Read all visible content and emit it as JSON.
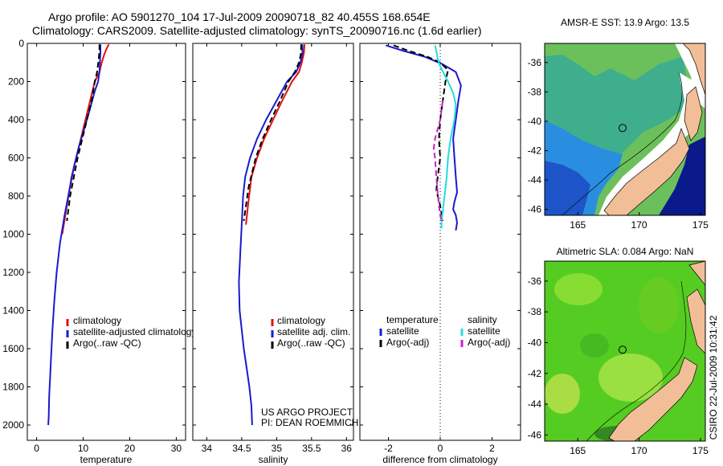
{
  "figure": {
    "title_line1": "Argo profile: AO 5901270_104 17-Jul-2009 20090718_82 40.455S 168.654E",
    "title_line2": "Climatology: CARS2009. Satellite-adjusted climatology: synTS_20090716.nc (1.6d earlier)",
    "project_line1": "US ARGO PROJECT",
    "project_line2": "PI: DEAN ROEMMICH",
    "stamp": "CSIRO 22-Jul-2009 10:31:42"
  },
  "colors": {
    "climatology": "#dd1111",
    "satellite": "#1a1acc",
    "argo": "#000000",
    "satellite_salinity": "#22dddd",
    "argo_adj_salinity": "#cc22cc",
    "land": "#f2be98",
    "sst_warm": "#6cc05c",
    "sst_cool": "#2a8ee0",
    "sla_green": "#55cc22"
  },
  "chart_data": [
    {
      "id": "temperature",
      "type": "line",
      "xlabel": "temperature",
      "ylabel": "",
      "xlim": [
        -2,
        32
      ],
      "ylim": [
        2080,
        0
      ],
      "xticks": [
        0,
        10,
        20,
        30
      ],
      "yticks": [
        0,
        200,
        400,
        600,
        800,
        1000,
        1200,
        1400,
        1600,
        1800,
        2000
      ],
      "legend": {
        "placement": "lower-right",
        "items": [
          {
            "label": "climatology",
            "color": "#dd1111"
          },
          {
            "label": "satellite-adjusted climatology",
            "color": "#1a1acc"
          },
          {
            "label": "Argo(..raw -QC)",
            "color": "#000000"
          }
        ]
      },
      "series": [
        {
          "name": "climatology",
          "color": "#dd1111",
          "dash": "",
          "x": [
            15.5,
            15.0,
            14.5,
            14.0,
            13.5,
            12.5,
            11.5,
            10.5,
            9.5,
            8.5,
            7.5,
            6.5,
            5.5
          ],
          "y": [
            5,
            30,
            60,
            100,
            150,
            200,
            300,
            400,
            500,
            600,
            700,
            850,
            1000
          ]
        },
        {
          "name": "satellite-adjusted climatology",
          "color": "#1a1acc",
          "dash": "",
          "x": [
            13.7,
            13.7,
            13.6,
            13.5,
            13.2,
            12.5,
            11.4,
            10.2,
            9.0,
            8.0,
            7.2,
            6.0,
            5.0,
            4.3,
            3.8,
            3.4,
            3.1,
            2.9,
            2.7,
            2.6,
            2.5
          ],
          "y": [
            5,
            50,
            100,
            150,
            200,
            250,
            350,
            450,
            550,
            650,
            750,
            900,
            1050,
            1200,
            1350,
            1500,
            1650,
            1750,
            1850,
            1950,
            2000
          ]
        },
        {
          "name": "Argo(..raw -QC)",
          "color": "#000000",
          "dash": "7,4",
          "x": [
            13.5,
            13.5,
            13.3,
            13.0,
            12.5,
            11.8,
            10.8,
            9.8,
            8.8,
            8.0,
            7.2,
            6.5
          ],
          "y": [
            5,
            40,
            90,
            150,
            200,
            300,
            400,
            500,
            600,
            700,
            800,
            930
          ]
        }
      ]
    },
    {
      "id": "salinity",
      "type": "line",
      "xlabel": "salinity",
      "ylabel": "",
      "xlim": [
        33.8,
        36.1
      ],
      "ylim": [
        2080,
        0
      ],
      "xticks": [
        34,
        34.5,
        35,
        35.5,
        36
      ],
      "yticks": [
        0,
        200,
        400,
        600,
        800,
        1000,
        1200,
        1400,
        1600,
        1800,
        2000
      ],
      "legend": {
        "placement": "lower-right",
        "items": [
          {
            "label": "climatology",
            "color": "#dd1111"
          },
          {
            "label": "satellite adj. clim.",
            "color": "#1a1acc"
          },
          {
            "label": "Argo(..raw -QC)",
            "color": "#000000"
          }
        ]
      },
      "series": [
        {
          "name": "climatology",
          "color": "#dd1111",
          "dash": "",
          "x": [
            35.4,
            35.39,
            35.36,
            35.32,
            35.22,
            35.08,
            34.95,
            34.82,
            34.72,
            34.64,
            34.59,
            34.56
          ],
          "y": [
            5,
            50,
            100,
            150,
            200,
            300,
            400,
            500,
            600,
            700,
            850,
            950
          ]
        },
        {
          "name": "satellite adj. clim.",
          "color": "#1a1acc",
          "dash": "",
          "x": [
            35.37,
            35.37,
            35.34,
            35.28,
            35.15,
            35.0,
            34.85,
            34.72,
            34.62,
            34.55,
            34.52,
            34.5,
            34.48,
            34.46,
            34.47,
            34.5,
            34.53,
            34.57,
            34.61,
            34.64,
            34.65
          ],
          "y": [
            5,
            50,
            100,
            150,
            200,
            300,
            400,
            500,
            600,
            700,
            800,
            950,
            1100,
            1250,
            1400,
            1500,
            1600,
            1700,
            1800,
            1900,
            2000
          ]
        },
        {
          "name": "Argo(..raw -QC)",
          "color": "#000000",
          "dash": "7,4",
          "x": [
            35.35,
            35.35,
            35.32,
            35.26,
            35.17,
            35.05,
            34.92,
            34.8,
            34.7,
            34.6,
            34.53
          ],
          "y": [
            5,
            50,
            100,
            150,
            200,
            300,
            400,
            500,
            600,
            750,
            930
          ]
        }
      ]
    },
    {
      "id": "difference",
      "type": "line",
      "xlabel": "difference from climatology",
      "ylabel": "",
      "xlim": [
        -3.1,
        3.1
      ],
      "ylim": [
        2080,
        0
      ],
      "xticks": [
        -2,
        0,
        2
      ],
      "yticks": [
        0,
        200,
        400,
        600,
        800,
        1000,
        1200,
        1400,
        1600,
        1800,
        2000
      ],
      "legend": {
        "placement": "lower-center",
        "items": [
          {
            "label": "temperature",
            "color": ""
          },
          {
            "label": "satellite",
            "color": "#1a1acc"
          },
          {
            "label": "Argo(-adj)",
            "color": "#000000"
          },
          {
            "label": "salinity",
            "color": ""
          },
          {
            "label": "satellite",
            "color": "#22dddd"
          },
          {
            "label": "Argo(-adj)",
            "color": "#cc22cc"
          }
        ]
      },
      "series": [
        {
          "name": "temperature satellite",
          "color": "#1a1acc",
          "dash": "",
          "x": [
            -2.1,
            -1.4,
            -0.6,
            0.1,
            0.6,
            0.8,
            0.7,
            0.6,
            0.5,
            0.55,
            0.6,
            0.65,
            0.55,
            0.5,
            0.6,
            0.65,
            0.6
          ],
          "y": [
            10,
            40,
            70,
            110,
            150,
            220,
            300,
            400,
            500,
            600,
            700,
            780,
            830,
            870,
            900,
            940,
            980
          ]
        },
        {
          "name": "temperature Argo(-adj)",
          "color": "#000000",
          "dash": "7,4",
          "x": [
            -1.8,
            -1.2,
            -0.5,
            0.0,
            0.3,
            0.2,
            0.1,
            0.0,
            -0.05,
            0.0,
            -0.1,
            -0.15,
            0.0,
            0.1
          ],
          "y": [
            10,
            40,
            70,
            100,
            140,
            200,
            300,
            400,
            500,
            600,
            700,
            770,
            850,
            930
          ]
        },
        {
          "name": "salinity satellite",
          "color": "#22dddd",
          "dash": "",
          "x": [
            -0.2,
            -0.15,
            -0.1,
            0.0,
            0.15,
            0.3,
            0.5,
            0.6,
            0.55,
            0.4,
            0.3,
            0.25,
            0.2,
            0.15,
            0.1,
            0.05,
            0.05
          ],
          "y": [
            10,
            40,
            80,
            120,
            160,
            200,
            260,
            320,
            400,
            500,
            600,
            700,
            760,
            820,
            880,
            930,
            970
          ]
        },
        {
          "name": "salinity Argo(-adj)",
          "color": "#cc22cc",
          "dash": "7,4",
          "x": [
            0.1,
            0.05,
            0.0,
            -0.1,
            -0.2,
            -0.25,
            -0.2,
            -0.15,
            -0.1,
            -0.05,
            0.0,
            0.05
          ],
          "y": [
            300,
            350,
            400,
            450,
            500,
            550,
            600,
            700,
            780,
            850,
            900,
            930
          ]
        }
      ]
    },
    {
      "id": "sst_map",
      "type": "heatmap",
      "title": "AMSR-E SST: 13.9 Argo: 13.5",
      "xlim": [
        162.3,
        175.4
      ],
      "ylim": [
        -46.4,
        -34.7
      ],
      "xticks": [
        165,
        170,
        175
      ],
      "yticks": [
        -36,
        -38,
        -40,
        -42,
        -44,
        -46
      ],
      "argo_position": {
        "lon": 168.654,
        "lat": -40.455
      }
    },
    {
      "id": "sla_map",
      "type": "heatmap",
      "title": "Altimetric SLA: 0.084 Argo: NaN",
      "xlim": [
        162.3,
        175.4
      ],
      "ylim": [
        -46.4,
        -34.7
      ],
      "xticks": [
        165,
        170,
        175
      ],
      "yticks": [
        -36,
        -38,
        -40,
        -42,
        -44,
        -46
      ],
      "argo_position": {
        "lon": 168.654,
        "lat": -40.455
      }
    }
  ]
}
